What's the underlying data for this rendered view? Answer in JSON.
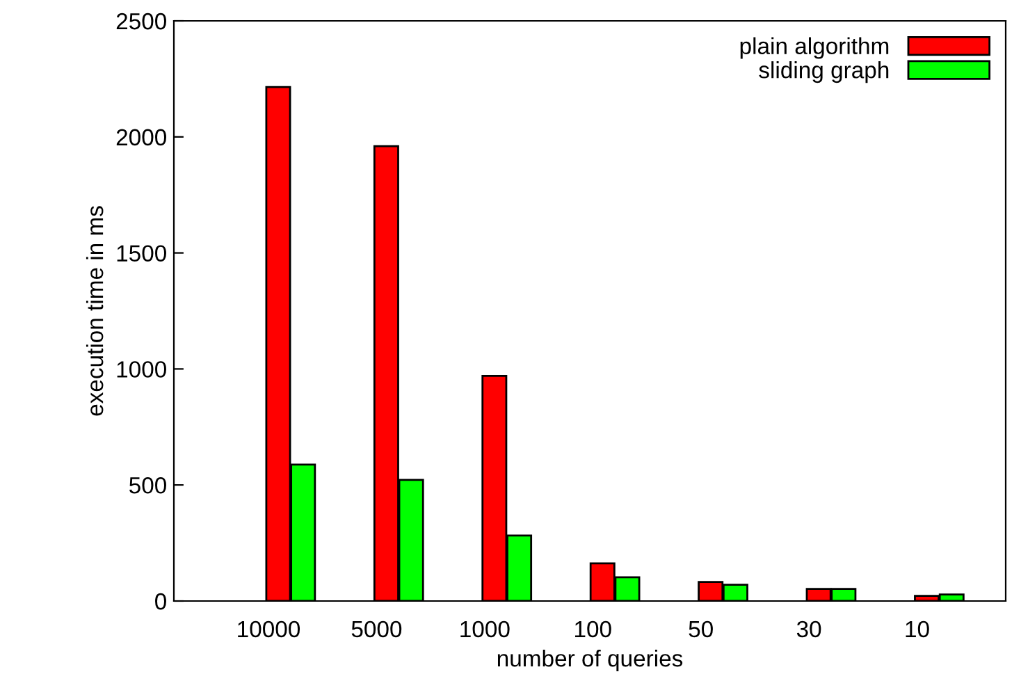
{
  "chart_data": {
    "type": "bar",
    "xlabel": "number of queries",
    "ylabel": "execution time in ms",
    "categories": [
      "10000",
      "5000",
      "1000",
      "100",
      "50",
      "30",
      "10"
    ],
    "series": [
      {
        "name": "plain algorithm",
        "color": "#ff0000",
        "values": [
          2215,
          1960,
          970,
          162,
          82,
          52,
          22
        ]
      },
      {
        "name": "sliding graph",
        "color": "#00ff00",
        "values": [
          588,
          522,
          282,
          102,
          70,
          52,
          28
        ]
      }
    ],
    "ylim": [
      0,
      2500
    ],
    "yticks": [
      0,
      500,
      1000,
      1500,
      2000,
      2500
    ],
    "grid": false,
    "legend": "top right"
  }
}
